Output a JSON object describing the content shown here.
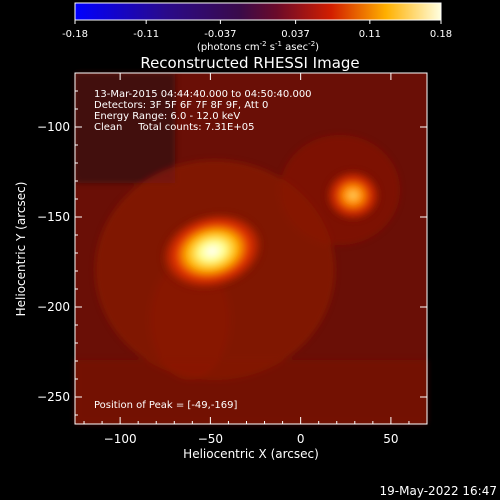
{
  "colorbar": {
    "ticks": [
      "-0.18",
      "-0.11",
      "-0.037",
      "0.037",
      "0.11",
      "0.18"
    ],
    "units": "(photons cm",
    "units_exp1": "-2",
    "units_mid": " s",
    "units_exp2": "-1",
    "units_mid2": " asec",
    "units_exp3": "-2",
    "units_end": ")",
    "range": [
      -0.18,
      0.18
    ]
  },
  "chart_data": {
    "type": "heatmap",
    "title": "Reconstructed RHESSI Image",
    "xlabel": "Heliocentric X (arcsec)",
    "ylabel": "Heliocentric Y (arcsec)",
    "xlim": [
      -125,
      70
    ],
    "ylim": [
      -265,
      -70
    ],
    "xticks": [
      -100,
      -50,
      0,
      50
    ],
    "yticks": [
      -100,
      -150,
      -200,
      -250
    ],
    "sources": [
      {
        "x": -49,
        "y": -169,
        "peak": 0.18
      },
      {
        "x": 29,
        "y": -138,
        "peak": 0.12
      }
    ],
    "info_lines": [
      "13-Mar-2015 04:44:40.000 to 04:50:40.000",
      "Detectors: 3F 5F 6F 7F 8F 9F, Att 0",
      "Energy Range: 6.0 - 12.0 keV",
      "Clean     Total counts: 7.31E+05"
    ],
    "peak_label": "Position of Peak = [-49,-169]"
  },
  "footer_date": "19-May-2022 16:47"
}
